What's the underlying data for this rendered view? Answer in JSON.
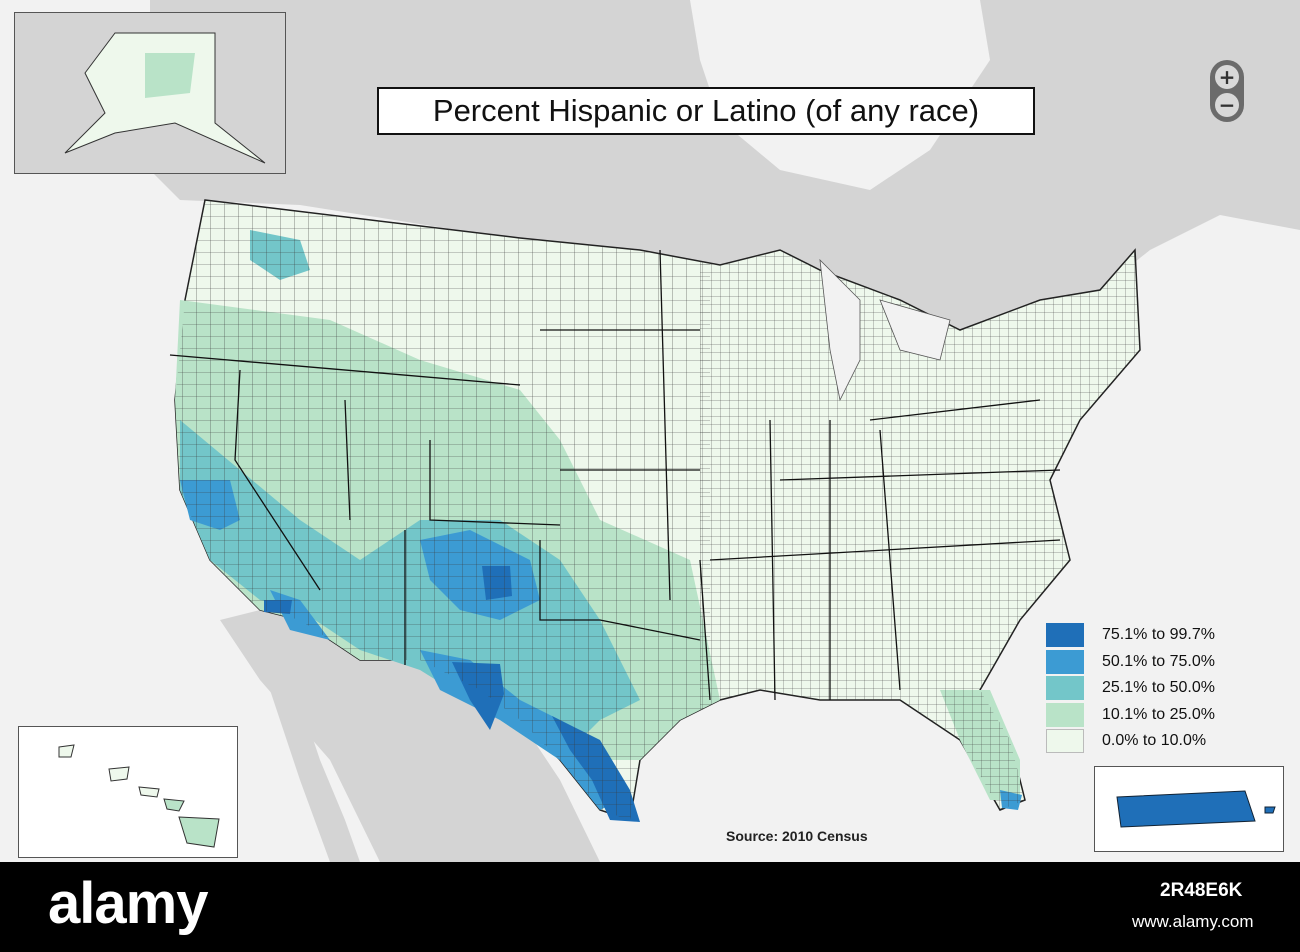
{
  "map": {
    "title": "Percent Hispanic or Latino (of any race)",
    "source": "Source:  2010 Census",
    "zoom": {
      "in_label": "+",
      "out_label": "−"
    },
    "legend": [
      {
        "label": "75.1% to 99.7%",
        "color": "#1f6fb8"
      },
      {
        "label": "50.1% to 75.0%",
        "color": "#3c9bd3"
      },
      {
        "label": "25.1% to 50.0%",
        "color": "#73c6c9"
      },
      {
        "label": "10.1% to 25.0%",
        "color": "#b9e3c8"
      },
      {
        "label": "0.0% to 10.0%",
        "color": "#eef8ec"
      }
    ],
    "colors": {
      "water": "#f2f2f2",
      "land_outside": "#cfcfcf",
      "border": "#333333"
    },
    "insets": [
      "Alaska",
      "Hawaii",
      "Puerto Rico"
    ]
  },
  "watermark": {
    "brand": "alamy",
    "image_id": "2R48E6K",
    "site": "www.alamy.com"
  }
}
